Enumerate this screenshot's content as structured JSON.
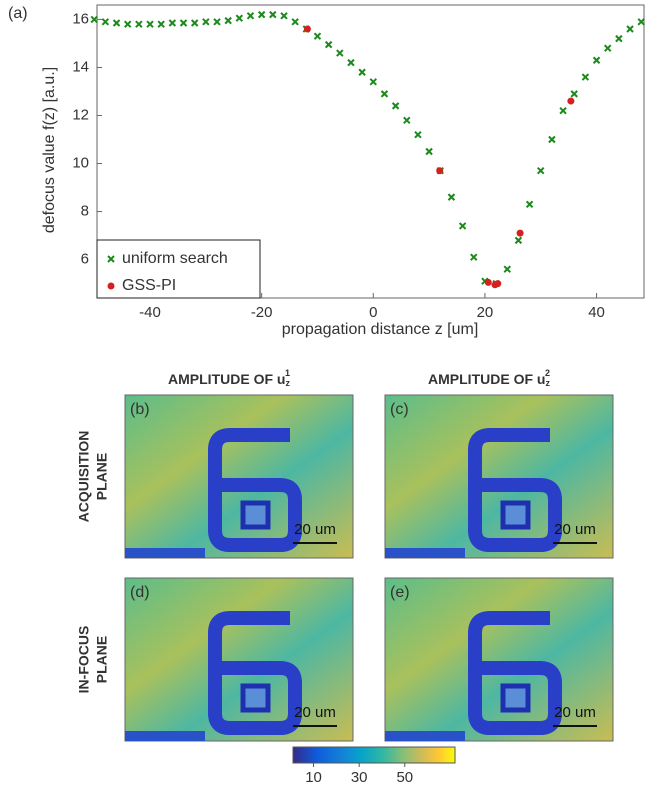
{
  "figure_label": "(a)",
  "chart_data": {
    "type": "scatter",
    "x_label": "propagation distance z [um]",
    "y_label": "defocus value f(z) [a.u.]",
    "xlim": [
      -49.5,
      48.5
    ],
    "xticks": [
      -40,
      -20,
      0,
      20,
      40
    ],
    "ylim": [
      4.4,
      16.6
    ],
    "yticks": [
      6,
      8,
      10,
      12,
      14,
      16
    ],
    "legend": "bottom-left",
    "series": [
      {
        "name": "uniform search",
        "color": "#1a8a1a",
        "marker": "x",
        "x": [
          -50,
          -48,
          -46,
          -44,
          -42,
          -40,
          -38,
          -36,
          -34,
          -32,
          -30,
          -28,
          -26,
          -24,
          -22,
          -20,
          -18,
          -16,
          -14,
          -12,
          -10,
          -8,
          -6,
          -4,
          -2,
          0,
          2,
          4,
          6,
          8,
          10,
          12,
          14,
          16,
          18,
          20,
          22,
          24,
          26,
          28,
          30,
          32,
          34,
          36,
          38,
          40,
          42,
          44,
          46,
          48
        ],
        "values": [
          16.0,
          15.9,
          15.85,
          15.8,
          15.8,
          15.8,
          15.8,
          15.85,
          15.85,
          15.85,
          15.9,
          15.9,
          15.95,
          16.05,
          16.15,
          16.2,
          16.2,
          16.15,
          15.9,
          15.6,
          15.3,
          14.95,
          14.6,
          14.2,
          13.8,
          13.4,
          12.9,
          12.4,
          11.8,
          11.2,
          10.5,
          9.7,
          8.6,
          7.4,
          6.1,
          5.1,
          5.0,
          5.6,
          6.8,
          8.3,
          9.7,
          11.0,
          12.2,
          12.9,
          13.6,
          14.3,
          14.8,
          15.2,
          15.6,
          15.9
        ]
      },
      {
        "name": "GSS-PI",
        "color": "#d42020",
        "marker": "o",
        "x": [
          -11.8,
          11.9,
          20.6,
          21.8,
          22.3,
          26.3,
          35.4
        ],
        "values": [
          15.6,
          9.7,
          5.05,
          4.95,
          5.0,
          7.1,
          12.6
        ]
      }
    ]
  },
  "columns": [
    {
      "text": "AMPLITUDE OF u",
      "sub": "z",
      "sup": "1"
    },
    {
      "text": "AMPLITUDE OF u",
      "sub": "z",
      "sup": "2"
    }
  ],
  "rows": [
    [
      "ACQUISITION",
      "PLANE"
    ],
    [
      "IN-FOCUS",
      "PLANE"
    ]
  ],
  "panels": [
    {
      "label": "(b)",
      "scale": "20 um"
    },
    {
      "label": "(c)",
      "scale": "20 um"
    },
    {
      "label": "(d)",
      "scale": "20 um"
    },
    {
      "label": "(e)",
      "scale": "20 um"
    }
  ],
  "colorbar": {
    "lim": [
      1,
      72
    ],
    "ticks": [
      10,
      30,
      50
    ]
  }
}
